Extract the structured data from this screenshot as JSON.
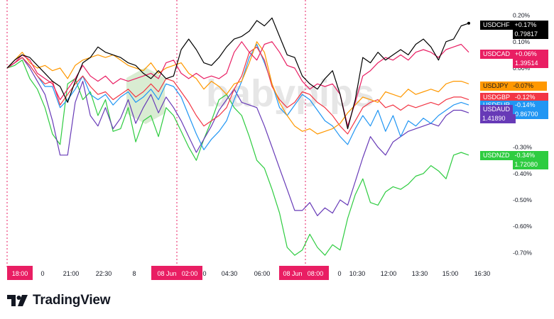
{
  "chart_data": {
    "type": "line",
    "ylabel": "",
    "xlabel": "",
    "ylim": [
      -0.78,
      0.21
    ],
    "yticks": [
      "0.20%",
      "0.10%",
      "0.00%",
      "-0.30%",
      "-0.40%",
      "-0.50%",
      "-0.60%",
      "-0.70%"
    ],
    "ytick_values": [
      0.2,
      0.1,
      0.0,
      -0.3,
      -0.4,
      -0.5,
      -0.6,
      -0.7
    ],
    "xticks": [
      "18:00",
      "0",
      "21:00",
      "22:30",
      "8",
      "08 Jun",
      "02:00",
      "0",
      "04:30",
      "06:00",
      "08 Jun",
      "08:00",
      "0",
      "10:30",
      "12:00",
      "13:30",
      "15:00",
      "16:30"
    ],
    "x_highlight_labels": [
      "18:00",
      "08 Jun  02:00",
      "08 Jun  08:00"
    ],
    "grid": false,
    "watermark": "babypips",
    "series": [
      {
        "name": "USDCHF",
        "color": "#000000",
        "change": "+0.17%",
        "price": "0.79817",
        "values": [
          0.0,
          0.03,
          0.05,
          0.04,
          0.01,
          -0.02,
          -0.05,
          -0.07,
          -0.13,
          -0.05,
          0.02,
          0.04,
          0.08,
          0.06,
          0.05,
          0.04,
          0.02,
          0.01,
          -0.02,
          -0.04,
          -0.01,
          -0.04,
          -0.03,
          0.07,
          0.11,
          0.07,
          0.02,
          0.01,
          0.04,
          0.08,
          0.11,
          0.12,
          0.14,
          0.18,
          0.16,
          0.19,
          0.12,
          0.05,
          0.04,
          -0.03,
          -0.06,
          -0.08,
          -0.04,
          -0.01,
          -0.1,
          -0.23,
          -0.12,
          0.04,
          0.02,
          0.06,
          0.03,
          0.05,
          0.07,
          0.05,
          0.09,
          0.11,
          0.08,
          0.03,
          0.1,
          0.11,
          0.16,
          0.17
        ]
      },
      {
        "name": "USDCAD",
        "color": "#e91e63",
        "change": "+0.06%",
        "price": "1.39514",
        "values": [
          0.0,
          0.02,
          0.05,
          0.03,
          -0.02,
          -0.04,
          -0.06,
          -0.12,
          -0.08,
          -0.04,
          0.01,
          -0.03,
          -0.05,
          -0.03,
          -0.06,
          -0.04,
          -0.05,
          -0.04,
          -0.03,
          -0.02,
          -0.04,
          0.02,
          0.03,
          -0.02,
          -0.04,
          -0.02,
          -0.04,
          -0.03,
          -0.04,
          -0.02,
          0.06,
          0.1,
          0.06,
          0.03,
          0.09,
          0.1,
          0.06,
          0.01,
          0.0,
          -0.05,
          -0.08,
          -0.06,
          -0.07,
          -0.06,
          -0.1,
          -0.22,
          -0.13,
          -0.03,
          -0.01,
          0.02,
          0.04,
          0.03,
          0.05,
          0.03,
          0.06,
          0.07,
          0.06,
          0.04,
          0.07,
          0.08,
          0.09,
          0.06
        ]
      },
      {
        "name": "USDJPY",
        "color": "#ff9800",
        "change": "-0.07%",
        "price": "",
        "values": [
          0.0,
          0.03,
          0.06,
          0.02,
          0.0,
          0.01,
          -0.01,
          0.0,
          -0.04,
          0.01,
          0.03,
          0.04,
          0.05,
          0.04,
          0.05,
          0.03,
          0.01,
          0.0,
          -0.01,
          0.02,
          -0.02,
          0.0,
          0.01,
          0.02,
          -0.02,
          -0.04,
          -0.08,
          -0.05,
          -0.07,
          -0.1,
          -0.06,
          -0.05,
          0.02,
          0.1,
          0.06,
          -0.06,
          -0.13,
          -0.18,
          -0.22,
          -0.24,
          -0.23,
          -0.25,
          -0.24,
          -0.23,
          -0.21,
          -0.17,
          -0.14,
          -0.11,
          -0.12,
          -0.13,
          -0.09,
          -0.1,
          -0.11,
          -0.08,
          -0.1,
          -0.09,
          -0.08,
          -0.09,
          -0.06,
          -0.05,
          -0.05,
          -0.06
        ]
      },
      {
        "name": "USDGBP",
        "color": "#f23645",
        "change": "-0.12%",
        "price": "",
        "values": [
          0.0,
          0.02,
          0.04,
          0.01,
          -0.03,
          -0.06,
          -0.05,
          -0.14,
          -0.1,
          -0.06,
          -0.03,
          -0.07,
          -0.1,
          -0.09,
          -0.12,
          -0.1,
          -0.08,
          -0.11,
          -0.09,
          -0.06,
          -0.09,
          -0.04,
          -0.05,
          -0.09,
          -0.13,
          -0.18,
          -0.22,
          -0.2,
          -0.18,
          -0.15,
          -0.08,
          -0.03,
          0.06,
          0.08,
          0.03,
          -0.07,
          -0.12,
          -0.15,
          -0.13,
          -0.09,
          -0.1,
          -0.13,
          -0.15,
          -0.18,
          -0.22,
          -0.25,
          -0.2,
          -0.15,
          -0.13,
          -0.12,
          -0.15,
          -0.14,
          -0.16,
          -0.14,
          -0.15,
          -0.14,
          -0.13,
          -0.14,
          -0.12,
          -0.11,
          -0.11,
          -0.12
        ]
      },
      {
        "name": "USDEUR",
        "color": "#2196f3",
        "change": "-0.14%",
        "price": "0.86700",
        "values": [
          0.0,
          0.02,
          0.04,
          0.01,
          -0.03,
          -0.07,
          -0.07,
          -0.15,
          -0.12,
          -0.08,
          -0.03,
          -0.1,
          -0.12,
          -0.1,
          -0.14,
          -0.11,
          -0.09,
          -0.13,
          -0.11,
          -0.08,
          -0.12,
          -0.06,
          -0.07,
          -0.11,
          -0.18,
          -0.25,
          -0.31,
          -0.27,
          -0.24,
          -0.2,
          -0.12,
          -0.05,
          0.04,
          0.09,
          0.02,
          -0.06,
          -0.15,
          -0.18,
          -0.14,
          -0.1,
          -0.12,
          -0.16,
          -0.2,
          -0.22,
          -0.26,
          -0.29,
          -0.23,
          -0.18,
          -0.22,
          -0.16,
          -0.24,
          -0.18,
          -0.26,
          -0.2,
          -0.22,
          -0.19,
          -0.21,
          -0.18,
          -0.16,
          -0.14,
          -0.13,
          -0.14
        ]
      },
      {
        "name": "USDAUD",
        "color": "#673ab7",
        "change": "",
        "price": "1.41890",
        "values": [
          0.0,
          0.02,
          0.04,
          0.0,
          -0.05,
          -0.1,
          -0.2,
          -0.33,
          -0.33,
          -0.13,
          -0.05,
          -0.18,
          -0.22,
          -0.15,
          -0.23,
          -0.19,
          -0.12,
          -0.21,
          -0.15,
          -0.1,
          -0.17,
          -0.11,
          -0.15,
          -0.2,
          -0.26,
          -0.32,
          -0.27,
          -0.22,
          -0.16,
          -0.12,
          -0.08,
          -0.13,
          -0.14,
          -0.15,
          -0.22,
          -0.3,
          -0.38,
          -0.46,
          -0.54,
          -0.54,
          -0.51,
          -0.56,
          -0.53,
          -0.55,
          -0.5,
          -0.52,
          -0.43,
          -0.34,
          -0.26,
          -0.3,
          -0.33,
          -0.28,
          -0.26,
          -0.24,
          -0.23,
          -0.22,
          -0.21,
          -0.22,
          -0.18,
          -0.16,
          -0.16,
          -0.17
        ]
      },
      {
        "name": "USDNZD",
        "color": "#2ecc40",
        "change": "-0.34%",
        "price": "1.72080",
        "values": [
          0.0,
          0.01,
          0.03,
          -0.04,
          -0.08,
          -0.15,
          -0.25,
          -0.29,
          -0.06,
          -0.04,
          -0.12,
          -0.09,
          -0.18,
          -0.12,
          -0.24,
          -0.23,
          -0.15,
          -0.28,
          -0.2,
          -0.18,
          -0.26,
          -0.15,
          -0.18,
          -0.24,
          -0.3,
          -0.35,
          -0.27,
          -0.2,
          -0.12,
          -0.1,
          -0.15,
          -0.18,
          -0.26,
          -0.35,
          -0.38,
          -0.46,
          -0.55,
          -0.68,
          -0.71,
          -0.69,
          -0.63,
          -0.68,
          -0.71,
          -0.67,
          -0.69,
          -0.57,
          -0.48,
          -0.42,
          -0.51,
          -0.52,
          -0.47,
          -0.45,
          -0.46,
          -0.44,
          -0.41,
          -0.4,
          -0.37,
          -0.39,
          -0.42,
          -0.33,
          -0.32,
          -0.33
        ]
      }
    ]
  },
  "footer": {
    "brand": "TradingView"
  }
}
